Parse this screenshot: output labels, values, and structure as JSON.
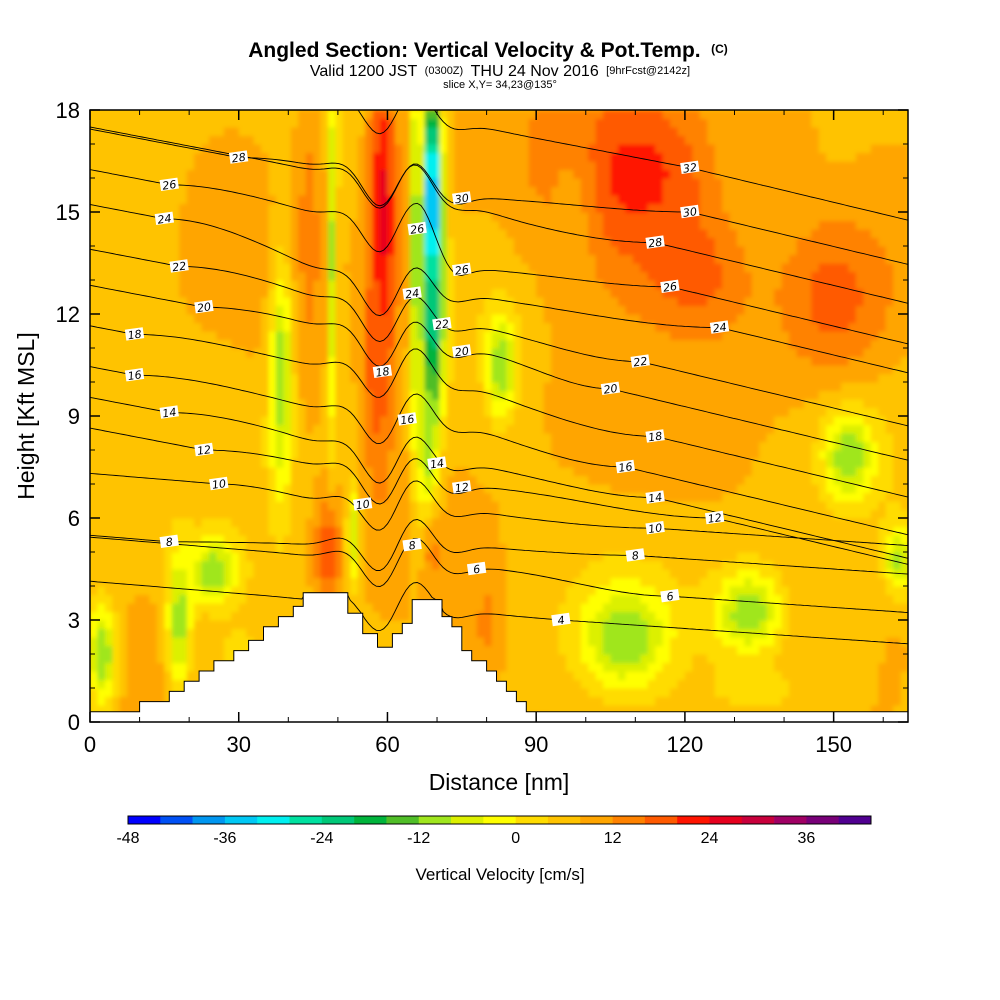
{
  "header": {
    "title_main": "Angled Section: Vertical Velocity & Pot.Temp.",
    "title_unit": "(C)",
    "valid_prefix": "Valid 1200 JST",
    "valid_utc": "(0300Z)",
    "valid_date": "THU 24 Nov 2016",
    "valid_fcst": "[9hrFcst@2142z]",
    "slice": "slice X,Y= 34,23@135°"
  },
  "chart_data": {
    "type": "heatmap",
    "title": "Angled Section: Vertical Velocity & Pot.Temp. (C)",
    "xlabel": "Distance [nm]",
    "ylabel": "Height [Kft MSL]",
    "xlim": [
      0,
      165
    ],
    "ylim": [
      0,
      18
    ],
    "x_ticks": [
      0,
      30,
      60,
      90,
      120,
      150
    ],
    "y_ticks": [
      0,
      3,
      6,
      9,
      12,
      15,
      18
    ],
    "colorbar": {
      "title": "Vertical Velocity [cm/s]",
      "range": [
        -48,
        42
      ],
      "step": 4,
      "tick_values": [
        -48,
        -36,
        -24,
        -12,
        0,
        12,
        24,
        36
      ],
      "colors": [
        "#0000ff",
        "#0050f5",
        "#0096f0",
        "#00c8f5",
        "#00f0f0",
        "#00e1a0",
        "#00c878",
        "#00b43c",
        "#50be28",
        "#a0e61e",
        "#dcf000",
        "#ffff00",
        "#ffdc00",
        "#ffc300",
        "#ffa500",
        "#ff8200",
        "#ff5a00",
        "#ff1400",
        "#e6001e",
        "#c8003c",
        "#a00064",
        "#780078",
        "#500090"
      ]
    },
    "theta_contours": [
      {
        "value": 4,
        "label_x": 95,
        "label_z": 3.0
      },
      {
        "value": 6,
        "label_x": 78,
        "label_z": 4.5
      },
      {
        "value": 6,
        "label_x": 117,
        "label_z": 3.7
      },
      {
        "value": 8,
        "label_x": 16,
        "label_z": 5.3
      },
      {
        "value": 8,
        "label_x": 65,
        "label_z": 5.2
      },
      {
        "value": 8,
        "label_x": 110,
        "label_z": 4.9
      },
      {
        "value": 10,
        "label_x": 26,
        "label_z": 7.0
      },
      {
        "value": 10,
        "label_x": 55,
        "label_z": 6.4
      },
      {
        "value": 10,
        "label_x": 114,
        "label_z": 5.7
      },
      {
        "value": 12,
        "label_x": 23,
        "label_z": 8.0
      },
      {
        "value": 12,
        "label_x": 75,
        "label_z": 6.9
      },
      {
        "value": 12,
        "label_x": 126,
        "label_z": 6.0
      },
      {
        "value": 14,
        "label_x": 16,
        "label_z": 9.1
      },
      {
        "value": 14,
        "label_x": 70,
        "label_z": 7.6
      },
      {
        "value": 14,
        "label_x": 114,
        "label_z": 6.6
      },
      {
        "value": 16,
        "label_x": 9,
        "label_z": 10.2
      },
      {
        "value": 16,
        "label_x": 64,
        "label_z": 8.9
      },
      {
        "value": 16,
        "label_x": 108,
        "label_z": 7.5
      },
      {
        "value": 18,
        "label_x": 9,
        "label_z": 11.4
      },
      {
        "value": 18,
        "label_x": 59,
        "label_z": 10.3
      },
      {
        "value": 18,
        "label_x": 114,
        "label_z": 8.4
      },
      {
        "value": 20,
        "label_x": 23,
        "label_z": 12.2
      },
      {
        "value": 20,
        "label_x": 75,
        "label_z": 10.9
      },
      {
        "value": 20,
        "label_x": 105,
        "label_z": 9.8
      },
      {
        "value": 22,
        "label_x": 18,
        "label_z": 13.4
      },
      {
        "value": 22,
        "label_x": 71,
        "label_z": 11.7
      },
      {
        "value": 22,
        "label_x": 111,
        "label_z": 10.6
      },
      {
        "value": 24,
        "label_x": 15,
        "label_z": 14.8
      },
      {
        "value": 24,
        "label_x": 65,
        "label_z": 12.6
      },
      {
        "value": 24,
        "label_x": 127,
        "label_z": 11.6
      },
      {
        "value": 26,
        "label_x": 16,
        "label_z": 15.8
      },
      {
        "value": 26,
        "label_x": 66,
        "label_z": 14.5
      },
      {
        "value": 26,
        "label_x": 75,
        "label_z": 13.3
      },
      {
        "value": 26,
        "label_x": 117,
        "label_z": 12.8
      },
      {
        "value": 28,
        "label_x": 30,
        "label_z": 16.6
      },
      {
        "value": 28,
        "label_x": 114,
        "label_z": 14.1
      },
      {
        "value": 30,
        "label_x": 75,
        "label_z": 15.4
      },
      {
        "value": 30,
        "label_x": 121,
        "label_z": 15.0
      },
      {
        "value": 32,
        "label_x": 121,
        "label_z": 16.3
      }
    ],
    "terrain": [
      [
        0,
        0.3
      ],
      [
        10,
        0.3
      ],
      [
        10,
        0.6
      ],
      [
        16,
        0.6
      ],
      [
        16,
        0.9
      ],
      [
        19,
        0.9
      ],
      [
        19,
        1.2
      ],
      [
        22,
        1.2
      ],
      [
        22,
        1.5
      ],
      [
        25,
        1.5
      ],
      [
        25,
        1.8
      ],
      [
        29,
        1.8
      ],
      [
        29,
        2.1
      ],
      [
        32,
        2.1
      ],
      [
        32,
        2.4
      ],
      [
        35,
        2.4
      ],
      [
        35,
        2.8
      ],
      [
        38,
        2.8
      ],
      [
        38,
        3.1
      ],
      [
        41,
        3.1
      ],
      [
        41,
        3.4
      ],
      [
        43,
        3.4
      ],
      [
        43,
        3.8
      ],
      [
        52,
        3.8
      ],
      [
        52,
        3.2
      ],
      [
        55,
        3.2
      ],
      [
        55,
        2.6
      ],
      [
        58,
        2.6
      ],
      [
        58,
        2.2
      ],
      [
        61,
        2.2
      ],
      [
        61,
        2.6
      ],
      [
        63,
        2.6
      ],
      [
        63,
        2.9
      ],
      [
        65,
        2.9
      ],
      [
        65,
        3.6
      ],
      [
        71,
        3.6
      ],
      [
        71,
        3.1
      ],
      [
        73,
        3.1
      ],
      [
        73,
        2.8
      ],
      [
        75,
        2.8
      ],
      [
        75,
        2.1
      ],
      [
        77,
        2.1
      ],
      [
        77,
        1.8
      ],
      [
        80,
        1.8
      ],
      [
        80,
        1.5
      ],
      [
        82,
        1.5
      ],
      [
        82,
        1.2
      ],
      [
        84,
        1.2
      ],
      [
        84,
        0.9
      ],
      [
        86,
        0.9
      ],
      [
        86,
        0.6
      ],
      [
        88,
        0.6
      ],
      [
        88,
        0.3
      ],
      [
        165,
        0.3
      ]
    ],
    "vv_features": [
      {
        "x": 59,
        "z": 14.5,
        "dx": 3.0,
        "dz": 5.5,
        "value": 26
      },
      {
        "x": 57.5,
        "z": 10.5,
        "dx": 2.5,
        "dz": 3.0,
        "value": 18
      },
      {
        "x": 69,
        "z": 15.0,
        "dx": 2.0,
        "dz": 3.5,
        "value": -44
      },
      {
        "x": 69,
        "z": 11.5,
        "dx": 2.2,
        "dz": 3.0,
        "value": -24
      },
      {
        "x": 68,
        "z": 8.0,
        "dx": 2.0,
        "dz": 2.5,
        "value": -10
      },
      {
        "x": 63.5,
        "z": 14.0,
        "dx": 1.2,
        "dz": 5.0,
        "value": 14
      },
      {
        "x": 65,
        "z": 14.0,
        "dx": 1.0,
        "dz": 6.0,
        "value": -10
      },
      {
        "x": 44,
        "z": 14.5,
        "dx": 3.0,
        "dz": 4.5,
        "value": 14
      },
      {
        "x": 49,
        "z": 14.0,
        "dx": 1.0,
        "dz": 5.5,
        "value": -10
      },
      {
        "x": 38.5,
        "z": 10.5,
        "dx": 2.3,
        "dz": 3.8,
        "value": -12
      },
      {
        "x": 48,
        "z": 5.0,
        "dx": 2.5,
        "dz": 1.5,
        "value": 20
      },
      {
        "x": 69,
        "z": 5.0,
        "dx": 1.5,
        "dz": 1.2,
        "value": 14
      },
      {
        "x": 80,
        "z": 3.0,
        "dx": 3.0,
        "dz": 1.5,
        "value": 14
      },
      {
        "x": 53,
        "z": 5.5,
        "dx": 1.2,
        "dz": 1.5,
        "value": -8
      },
      {
        "x": 110,
        "z": 16.0,
        "dx": 18.0,
        "dz": 3.0,
        "value": 22
      },
      {
        "x": 120,
        "z": 13.0,
        "dx": 12.0,
        "dz": 2.0,
        "value": 20
      },
      {
        "x": 150,
        "z": 12.5,
        "dx": 12.0,
        "dz": 2.5,
        "value": 18
      },
      {
        "x": 160,
        "z": 17.0,
        "dx": 5.0,
        "dz": 1.5,
        "value": 8
      },
      {
        "x": 97,
        "z": 14.5,
        "dx": 5.0,
        "dz": 3.0,
        "value": 10
      },
      {
        "x": 140,
        "z": 16.5,
        "dx": 6.0,
        "dz": 1.5,
        "value": 12
      },
      {
        "x": 110,
        "z": 9.5,
        "dx": 20.0,
        "dz": 3.0,
        "value": 10
      },
      {
        "x": 30,
        "z": 15.0,
        "dx": 10.0,
        "dz": 3.0,
        "value": 9
      },
      {
        "x": 12,
        "z": 10.5,
        "dx": 6.0,
        "dz": 3.0,
        "value": 8
      },
      {
        "x": 22,
        "z": 8.0,
        "dx": 6.0,
        "dz": 2.0,
        "value": 7
      },
      {
        "x": 77,
        "z": 17.0,
        "dx": 2.5,
        "dz": 1.5,
        "value": 12
      },
      {
        "x": 78,
        "z": 7.0,
        "dx": 3.0,
        "dz": 3.0,
        "value": 8
      },
      {
        "x": 131,
        "z": 17.0,
        "dx": 3.5,
        "dz": 2.0,
        "value": 10
      },
      {
        "x": 153,
        "z": 7.8,
        "dx": 5.0,
        "dz": 1.3,
        "value": -12
      },
      {
        "x": 163,
        "z": 4.8,
        "dx": 3.0,
        "dz": 1.0,
        "value": -10
      },
      {
        "x": 108,
        "z": 2.5,
        "dx": 9.0,
        "dz": 1.5,
        "value": -12
      },
      {
        "x": 133,
        "z": 3.2,
        "dx": 7.0,
        "dz": 1.3,
        "value": -12
      },
      {
        "x": 25,
        "z": 4.4,
        "dx": 5.0,
        "dz": 1.0,
        "value": -12
      },
      {
        "x": 18,
        "z": 3.0,
        "dx": 2.5,
        "dz": 2.0,
        "value": -11
      },
      {
        "x": 2.5,
        "z": 2.0,
        "dx": 3.0,
        "dz": 1.5,
        "value": -12
      },
      {
        "x": 83,
        "z": 10.5,
        "dx": 3.0,
        "dz": 1.5,
        "value": -12
      },
      {
        "x": 135,
        "z": 1.0,
        "dx": 15.0,
        "dz": 1.0,
        "value": 3
      },
      {
        "x": 150,
        "z": 3.0,
        "dx": 8.0,
        "dz": 2.0,
        "value": 4
      },
      {
        "x": 30,
        "z": 2.0,
        "dx": 6.0,
        "dz": 1.5,
        "value": 3
      }
    ]
  }
}
